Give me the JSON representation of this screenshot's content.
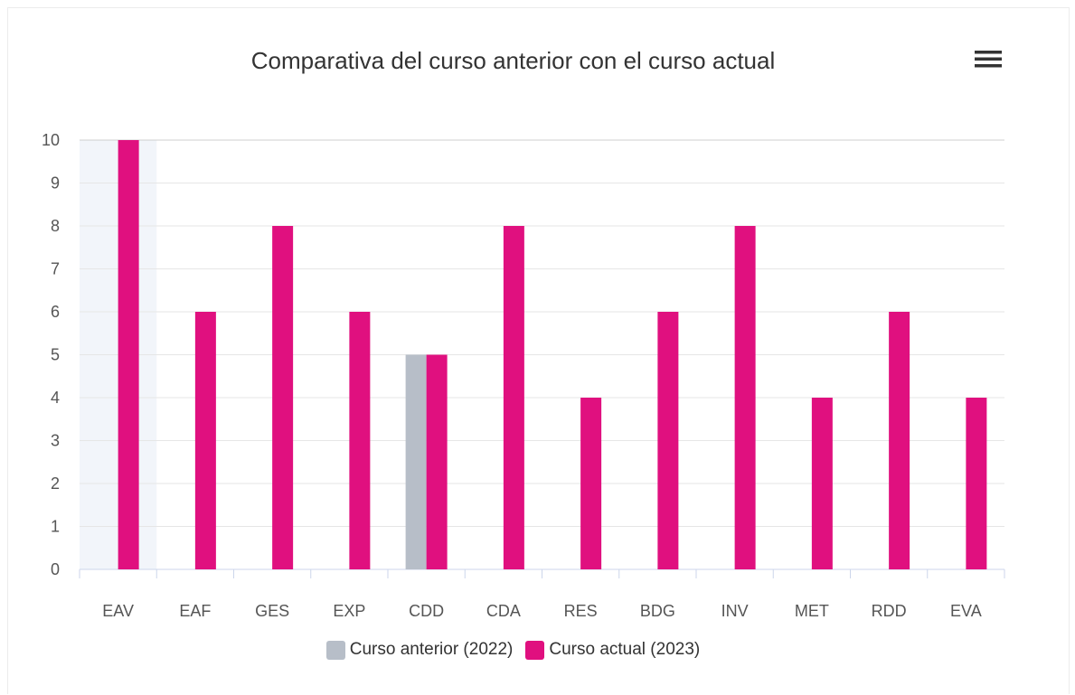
{
  "chart_data": {
    "type": "bar",
    "title": "Comparativa del curso anterior con el curso actual",
    "categories": [
      "EAV",
      "EAF",
      "GES",
      "EXP",
      "CDD",
      "CDA",
      "RES",
      "BDG",
      "INV",
      "MET",
      "RDD",
      "EVA"
    ],
    "series": [
      {
        "name": "Curso anterior (2022)",
        "color": "#b7bec8",
        "values": [
          0,
          0,
          0,
          0,
          5,
          0,
          0,
          0,
          0,
          0,
          0,
          0
        ]
      },
      {
        "name": "Curso actual (2023)",
        "color": "#e0107f",
        "values": [
          10,
          6,
          8,
          6,
          5,
          8,
          4,
          6,
          8,
          4,
          6,
          4
        ]
      }
    ],
    "ylim": [
      0,
      10
    ],
    "yticks": [
      0,
      1,
      2,
      3,
      4,
      5,
      6,
      7,
      8,
      9,
      10
    ],
    "grid": true,
    "legend_position": "bottom-center",
    "xlabel": "",
    "ylabel": ""
  },
  "toolbar": {
    "menu_icon": "hamburger-menu-icon"
  }
}
